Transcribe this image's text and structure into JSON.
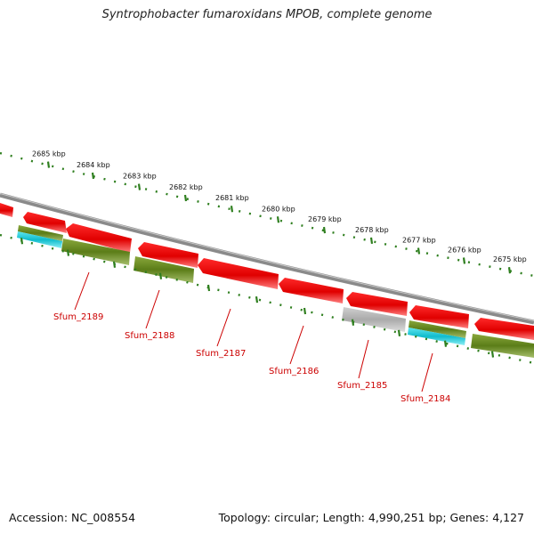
{
  "header": {
    "title": "Syntrophobacter fumaroxidans MPOB, complete genome"
  },
  "footer": {
    "accession": "Accession: NC_008554",
    "topology": "Topology: circular; Length: 4,990,251 bp; Genes: 4,127"
  },
  "colors": {
    "backbone": "#8a8a8a",
    "cds": "#e8000a",
    "cog": "#5e7f1c",
    "rna": "#16c0d0",
    "other": "#b4b4b4",
    "ticks": "#2f7f1f",
    "label": "#cc0000"
  },
  "kbp_ticks": [
    {
      "label": "2685 kbp"
    },
    {
      "label": "2684 kbp"
    },
    {
      "label": "2683 kbp"
    },
    {
      "label": "2682 kbp"
    },
    {
      "label": "2681 kbp"
    },
    {
      "label": "2680 kbp"
    },
    {
      "label": "2679 kbp"
    },
    {
      "label": "2678 kbp"
    },
    {
      "label": "2677 kbp"
    },
    {
      "label": "2676 kbp"
    },
    {
      "label": "2675 kbp"
    }
  ],
  "gene_labels": [
    {
      "name": "Sfum_2189"
    },
    {
      "name": "Sfum_2188"
    },
    {
      "name": "Sfum_2187"
    },
    {
      "name": "Sfum_2186"
    },
    {
      "name": "Sfum_2185"
    },
    {
      "name": "Sfum_2184"
    }
  ]
}
